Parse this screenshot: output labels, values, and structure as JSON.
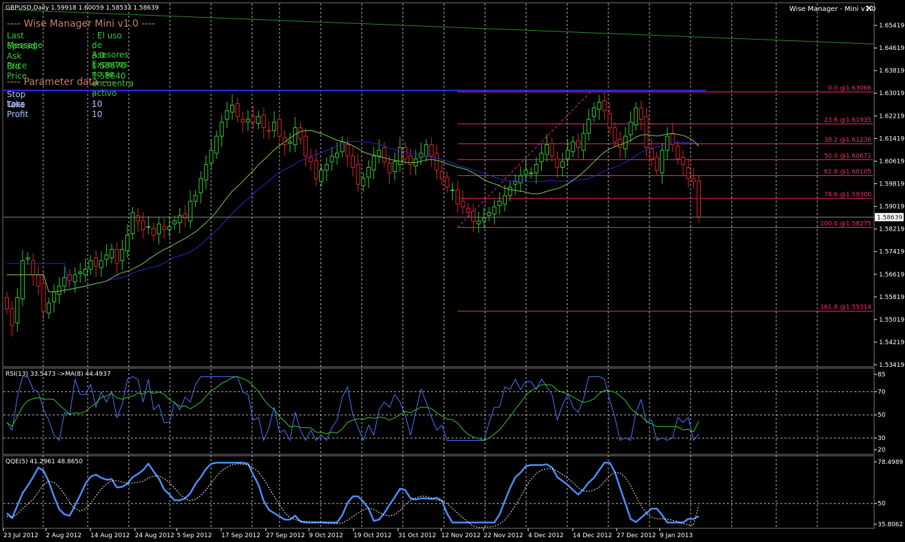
{
  "symbol_header": "GBPUSD,Daily  1.59918 1.60059 1.58533 1.58639",
  "manager": {
    "title": "Wise Manager - Mini v1.0",
    "close_icon": "close-icon",
    "section1": "---- Wise Manager Mini v1.0 ----",
    "section2": "---- Parameter data ----",
    "rows": [
      {
        "label": "Last Message",
        "value": ": El uso de Asesores Expertos no se encuentra activo"
      },
      {
        "label": "Spread",
        "value": ": 3.0"
      },
      {
        "label": "Ask Price",
        "value": ": 1.58670"
      },
      {
        "label": "Bid Price",
        "value": ": 1.58640"
      }
    ],
    "params": [
      {
        "label": "Stop Loss",
        "value": ": 10"
      },
      {
        "label": "Take Profit",
        "value": ": 10"
      }
    ],
    "colors": {
      "info": "#32cd32",
      "section": "#c8806a",
      "params": "#b0c8ff"
    }
  },
  "price_axis": {
    "labels": [
      "1.65419",
      "1.64619",
      "1.63819",
      "1.63019",
      "1.62219",
      "1.61419",
      "1.60619",
      "1.59819",
      "1.59019",
      "1.58219",
      "1.57419",
      "1.56619",
      "1.55819",
      "1.55019",
      "1.54219",
      "1.53419"
    ],
    "current": "1.58639"
  },
  "fibonacci": {
    "color": "#ff2d6e",
    "levels": [
      {
        "label": "0.0 @1.63066",
        "price": 1.63066
      },
      {
        "label": "23.6 @1.61935",
        "price": 1.61935
      },
      {
        "label": "38.2 @1.61236",
        "price": 1.61236
      },
      {
        "label": "50.0 @1.60671",
        "price": 1.60671
      },
      {
        "label": "61.8 @1.60105",
        "price": 1.60105
      },
      {
        "label": "78.6 @1.59300",
        "price": 1.593
      },
      {
        "label": "100.0 @1.58275",
        "price": 1.58275
      },
      {
        "label": "161.8 @1.55314",
        "price": 1.55314
      }
    ]
  },
  "rsi": {
    "label": "RSI(13) 33.5473 ->MA(8) 44.4937",
    "axis": [
      "85",
      "70",
      "50",
      "30",
      "20"
    ]
  },
  "qqe": {
    "label": "QQE(5) 41.2961 48.8650",
    "axis": [
      "78.4989",
      "50",
      "35.8062"
    ]
  },
  "dates": [
    "23 Jul 2012",
    "2 Aug 2012",
    "14 Aug 2012",
    "24 Aug 2012",
    "5 Sep 2012",
    "17 Sep 2012",
    "27 Sep 2012",
    "9 Oct 2012",
    "19 Oct 2012",
    "31 Oct 2012",
    "12 Nov 2012",
    "22 Nov 2012",
    "4 Dec 2012",
    "14 Dec 2012",
    "27 Dec 2012",
    "9 Jan 2013"
  ],
  "chart_data": {
    "type": "candlestick",
    "symbol": "GBPUSD",
    "timeframe": "Daily",
    "last_bar": {
      "open": 1.59918,
      "high": 1.60059,
      "low": 1.58533,
      "close": 1.58639
    },
    "closes": [
      1.554,
      1.548,
      1.558,
      1.571,
      1.572,
      1.566,
      1.562,
      1.553,
      1.556,
      1.56,
      1.562,
      1.565,
      1.564,
      1.566,
      1.567,
      1.568,
      1.571,
      1.569,
      1.571,
      1.573,
      1.575,
      1.57,
      1.575,
      1.58,
      1.588,
      1.585,
      1.582,
      1.583,
      1.58,
      1.584,
      1.582,
      1.583,
      1.585,
      1.587,
      1.586,
      1.592,
      1.594,
      1.6,
      1.605,
      1.61,
      1.615,
      1.62,
      1.624,
      1.626,
      1.622,
      1.62,
      1.621,
      1.62,
      1.622,
      1.618,
      1.617,
      1.62,
      1.615,
      1.612,
      1.613,
      1.618,
      1.614,
      1.608,
      1.606,
      1.6,
      1.603,
      1.605,
      1.608,
      1.609,
      1.613,
      1.608,
      1.604,
      1.598,
      1.6,
      1.604,
      1.608,
      1.61,
      1.606,
      1.602,
      1.606,
      1.611,
      1.607,
      1.605,
      1.607,
      1.609,
      1.612,
      1.608,
      1.603,
      1.6,
      1.597,
      1.596,
      1.591,
      1.59,
      1.588,
      1.585,
      1.585,
      1.586,
      1.588,
      1.59,
      1.592,
      1.594,
      1.597,
      1.599,
      1.601,
      1.603,
      1.602,
      1.605,
      1.609,
      1.612,
      1.608,
      1.604,
      1.606,
      1.61,
      1.613,
      1.611,
      1.616,
      1.621,
      1.625,
      1.627,
      1.624,
      1.618,
      1.613,
      1.611,
      1.615,
      1.62,
      1.625,
      1.621,
      1.611,
      1.607,
      1.603,
      1.61,
      1.615,
      1.612,
      1.607,
      1.605,
      1.6,
      1.599,
      1.587
    ],
    "ma_slow_color": "#2a2ad0",
    "ma_fast_color": "#7cd04a",
    "rsi_last": 33.5473,
    "rsi_ma_last": 44.4937,
    "qqe_values": [
      41.2961,
      48.865
    ]
  }
}
